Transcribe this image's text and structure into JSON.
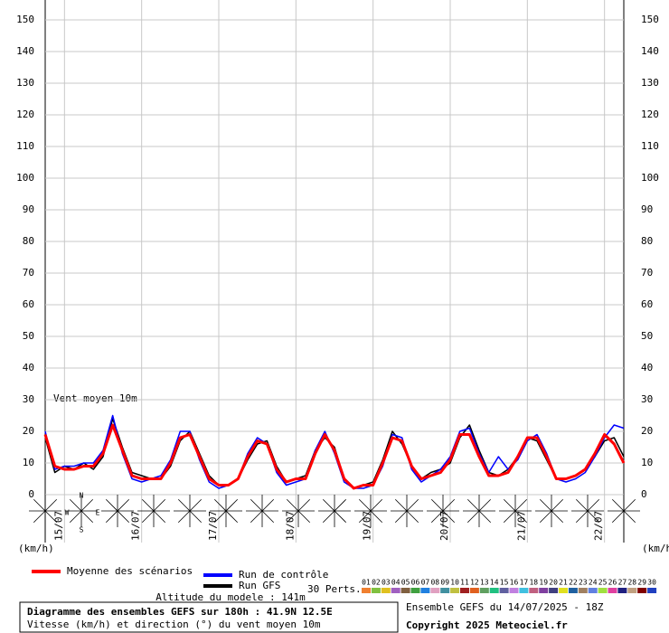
{
  "chart_data": {
    "type": "line",
    "annotation": "Vent moyen 10m",
    "y_unit_left": "(km/h)",
    "y_unit_right": "(km/h)",
    "x": [
      0,
      3,
      6,
      9,
      12,
      15,
      18,
      21,
      24,
      27,
      30,
      33,
      36,
      39,
      42,
      45,
      48,
      51,
      54,
      57,
      60,
      63,
      66,
      69,
      72,
      75,
      78,
      81,
      84,
      87,
      90,
      93,
      96,
      99,
      102,
      105,
      108,
      111,
      114,
      117,
      120,
      123,
      126,
      129,
      132,
      135,
      138,
      141,
      144,
      147,
      150,
      153,
      156,
      159,
      162,
      165,
      168,
      171,
      174,
      177,
      180
    ],
    "xlim": [
      0,
      180
    ],
    "xticks": [
      {
        "value": 6,
        "label": "15/07"
      },
      {
        "value": 30,
        "label": "16/07"
      },
      {
        "value": 54,
        "label": "17/07"
      },
      {
        "value": 78,
        "label": "18/07"
      },
      {
        "value": 102,
        "label": "19/07"
      },
      {
        "value": 126,
        "label": "20/07"
      },
      {
        "value": 150,
        "label": "21/07"
      },
      {
        "value": 174,
        "label": "22/07"
      }
    ],
    "ylim": [
      0,
      150
    ],
    "yticks": [
      0,
      10,
      20,
      30,
      40,
      50,
      60,
      70,
      80,
      90,
      100,
      110,
      120,
      130,
      140,
      150
    ],
    "grid": true,
    "series": [
      {
        "name": "Moyenne des scénarios",
        "color": "#ff0000",
        "values": [
          19,
          9,
          8,
          8,
          9,
          9,
          13,
          22,
          14,
          6,
          5,
          5,
          5,
          10,
          18,
          19,
          12,
          5,
          3,
          3,
          5,
          12,
          17,
          16,
          8,
          4,
          5,
          5,
          13,
          19,
          14,
          5,
          2,
          3,
          3,
          10,
          18,
          17,
          9,
          5,
          6,
          7,
          11,
          19,
          19,
          12,
          6,
          6,
          7,
          12,
          18,
          18,
          12,
          5,
          5,
          6,
          8,
          13,
          19,
          16,
          10
        ]
      },
      {
        "name": "Run de contrôle",
        "color": "#0000ff",
        "values": [
          20,
          8,
          9,
          9,
          10,
          10,
          14,
          25,
          13,
          5,
          4,
          5,
          6,
          11,
          20,
          20,
          11,
          4,
          2,
          3,
          5,
          13,
          18,
          16,
          7,
          3,
          4,
          5,
          14,
          20,
          13,
          4,
          2,
          2,
          3,
          9,
          19,
          18,
          8,
          4,
          6,
          8,
          12,
          20,
          21,
          13,
          7,
          12,
          8,
          11,
          17,
          19,
          13,
          5,
          4,
          5,
          7,
          12,
          18,
          22,
          21
        ]
      },
      {
        "name": "Run GFS",
        "color": "#000000",
        "values": [
          18,
          7,
          9,
          8,
          10,
          8,
          12,
          24,
          15,
          7,
          6,
          5,
          5,
          9,
          17,
          20,
          13,
          6,
          3,
          3,
          5,
          11,
          16,
          17,
          9,
          4,
          5,
          6,
          14,
          18,
          15,
          5,
          2,
          3,
          4,
          11,
          20,
          16,
          9,
          5,
          7,
          8,
          10,
          18,
          22,
          14,
          7,
          6,
          8,
          12,
          18,
          17,
          11,
          5,
          5,
          6,
          8,
          12,
          17,
          18,
          12
        ]
      }
    ],
    "compass": [
      "N",
      "W",
      "E",
      "S"
    ],
    "perturbations_label": "30 Perts.",
    "perturbations": [
      {
        "label": "01",
        "color": "#f08030"
      },
      {
        "label": "02",
        "color": "#80c040"
      },
      {
        "label": "03",
        "color": "#e0c020"
      },
      {
        "label": "04",
        "color": "#a060c0"
      },
      {
        "label": "05",
        "color": "#806040"
      },
      {
        "label": "06",
        "color": "#40a040"
      },
      {
        "label": "07",
        "color": "#2080e0"
      },
      {
        "label": "08",
        "color": "#e0a0c0"
      },
      {
        "label": "09",
        "color": "#4090a0"
      },
      {
        "label": "10",
        "color": "#c0c040"
      },
      {
        "label": "11",
        "color": "#a02020"
      },
      {
        "label": "12",
        "color": "#e06020"
      },
      {
        "label": "13",
        "color": "#60a060"
      },
      {
        "label": "14",
        "color": "#20c080"
      },
      {
        "label": "15",
        "color": "#6060a0"
      },
      {
        "label": "16",
        "color": "#c080e0"
      },
      {
        "label": "17",
        "color": "#40c0e0"
      },
      {
        "label": "18",
        "color": "#c06080"
      },
      {
        "label": "19",
        "color": "#8040a0"
      },
      {
        "label": "20",
        "color": "#404080"
      },
      {
        "label": "21",
        "color": "#e0e020"
      },
      {
        "label": "22",
        "color": "#2060a0"
      },
      {
        "label": "23",
        "color": "#a08060"
      },
      {
        "label": "24",
        "color": "#6080e0"
      },
      {
        "label": "25",
        "color": "#a0e040"
      },
      {
        "label": "26",
        "color": "#e040a0"
      },
      {
        "label": "27",
        "color": "#202080"
      },
      {
        "label": "28",
        "color": "#c0a080"
      },
      {
        "label": "29",
        "color": "#800000"
      },
      {
        "label": "30",
        "color": "#2040c0"
      }
    ],
    "altitude": "Altitude du modele : 141m",
    "title": "Diagramme des ensembles GEFS sur 180h : 41.9N 12.5E",
    "subtitle": "Vitesse (km/h) et direction (°) du vent moyen 10m",
    "run_info": "Ensemble GEFS du 14/07/2025 - 18Z",
    "copyright": "Copyright 2025 Meteociel.fr"
  }
}
